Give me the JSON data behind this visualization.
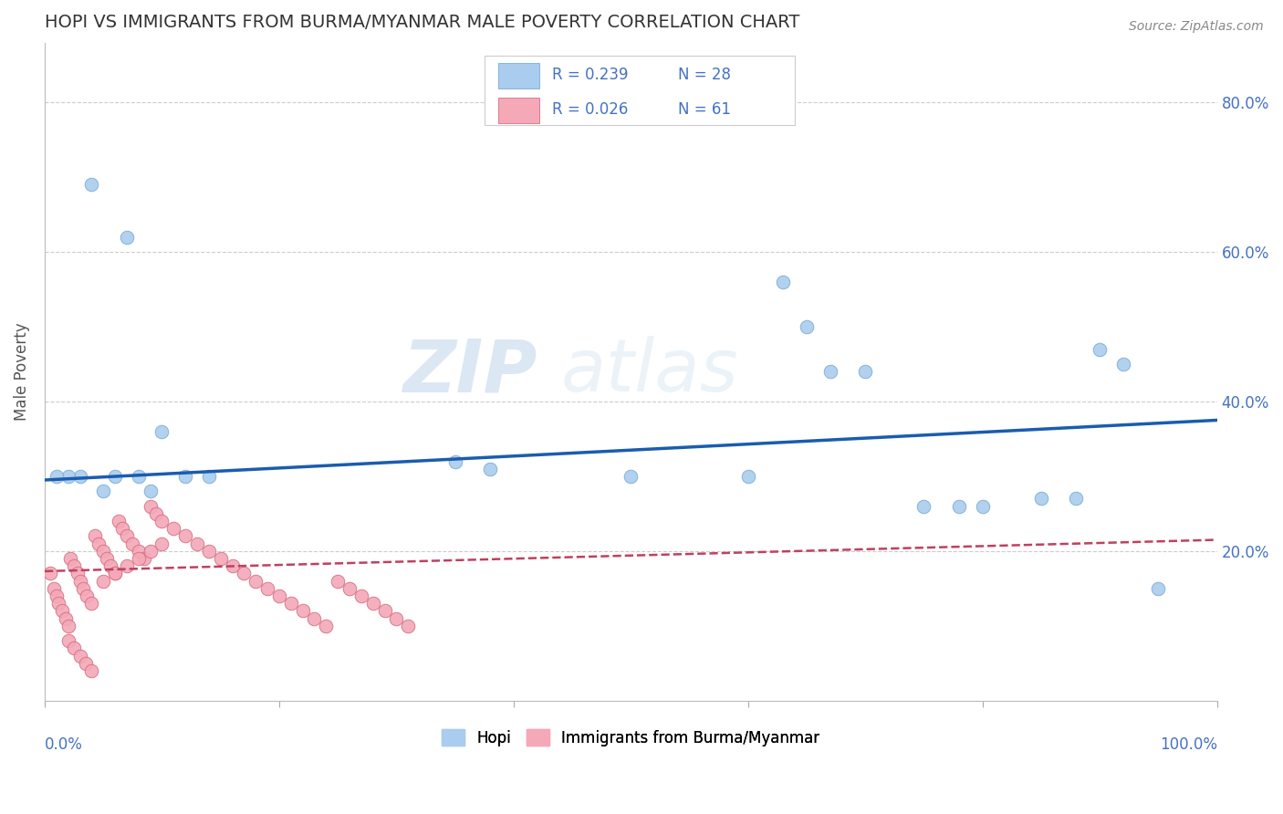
{
  "title": "HOPI VS IMMIGRANTS FROM BURMA/MYANMAR MALE POVERTY CORRELATION CHART",
  "source": "Source: ZipAtlas.com",
  "ylabel": "Male Poverty",
  "y_range": [
    0.0,
    0.88
  ],
  "x_range": [
    0.0,
    1.0
  ],
  "hopi_color": "#aaccee",
  "hopi_edge": "#7aadd4",
  "burma_color": "#f4a8b8",
  "burma_edge": "#d47080",
  "trend_hopi_color": "#1a5cb0",
  "trend_burma_color": "#c04060",
  "watermark_zip": "ZIP",
  "watermark_atlas": "atlas",
  "hopi_x": [
    0.04,
    0.07,
    0.06,
    0.08,
    0.09,
    0.05,
    0.03,
    0.02,
    0.01,
    0.1,
    0.12,
    0.14,
    0.35,
    0.38,
    0.6,
    0.63,
    0.65,
    0.67,
    0.7,
    0.85,
    0.88,
    0.9,
    0.92,
    0.95,
    0.5,
    0.75,
    0.78,
    0.8
  ],
  "hopi_y": [
    0.69,
    0.62,
    0.3,
    0.3,
    0.28,
    0.28,
    0.3,
    0.3,
    0.3,
    0.36,
    0.3,
    0.3,
    0.32,
    0.31,
    0.3,
    0.56,
    0.5,
    0.44,
    0.44,
    0.27,
    0.27,
    0.47,
    0.45,
    0.15,
    0.3,
    0.26,
    0.26,
    0.26
  ],
  "burma_x": [
    0.005,
    0.008,
    0.01,
    0.012,
    0.015,
    0.018,
    0.02,
    0.022,
    0.025,
    0.028,
    0.03,
    0.033,
    0.036,
    0.04,
    0.043,
    0.046,
    0.05,
    0.053,
    0.056,
    0.06,
    0.063,
    0.066,
    0.07,
    0.075,
    0.08,
    0.085,
    0.09,
    0.095,
    0.1,
    0.11,
    0.12,
    0.13,
    0.14,
    0.15,
    0.16,
    0.17,
    0.18,
    0.19,
    0.2,
    0.21,
    0.22,
    0.23,
    0.24,
    0.25,
    0.26,
    0.27,
    0.28,
    0.29,
    0.3,
    0.31,
    0.02,
    0.025,
    0.03,
    0.035,
    0.04,
    0.05,
    0.06,
    0.07,
    0.08,
    0.09,
    0.1
  ],
  "burma_y": [
    0.17,
    0.15,
    0.14,
    0.13,
    0.12,
    0.11,
    0.1,
    0.19,
    0.18,
    0.17,
    0.16,
    0.15,
    0.14,
    0.13,
    0.22,
    0.21,
    0.2,
    0.19,
    0.18,
    0.17,
    0.24,
    0.23,
    0.22,
    0.21,
    0.2,
    0.19,
    0.26,
    0.25,
    0.24,
    0.23,
    0.22,
    0.21,
    0.2,
    0.19,
    0.18,
    0.17,
    0.16,
    0.15,
    0.14,
    0.13,
    0.12,
    0.11,
    0.1,
    0.16,
    0.15,
    0.14,
    0.13,
    0.12,
    0.11,
    0.1,
    0.08,
    0.07,
    0.06,
    0.05,
    0.04,
    0.16,
    0.17,
    0.18,
    0.19,
    0.2,
    0.21
  ],
  "trend_hopi_x0": 0.0,
  "trend_hopi_y0": 0.295,
  "trend_hopi_x1": 1.0,
  "trend_hopi_y1": 0.375,
  "trend_burma_x0": 0.0,
  "trend_burma_y0": 0.173,
  "trend_burma_x1": 1.0,
  "trend_burma_y1": 0.215
}
